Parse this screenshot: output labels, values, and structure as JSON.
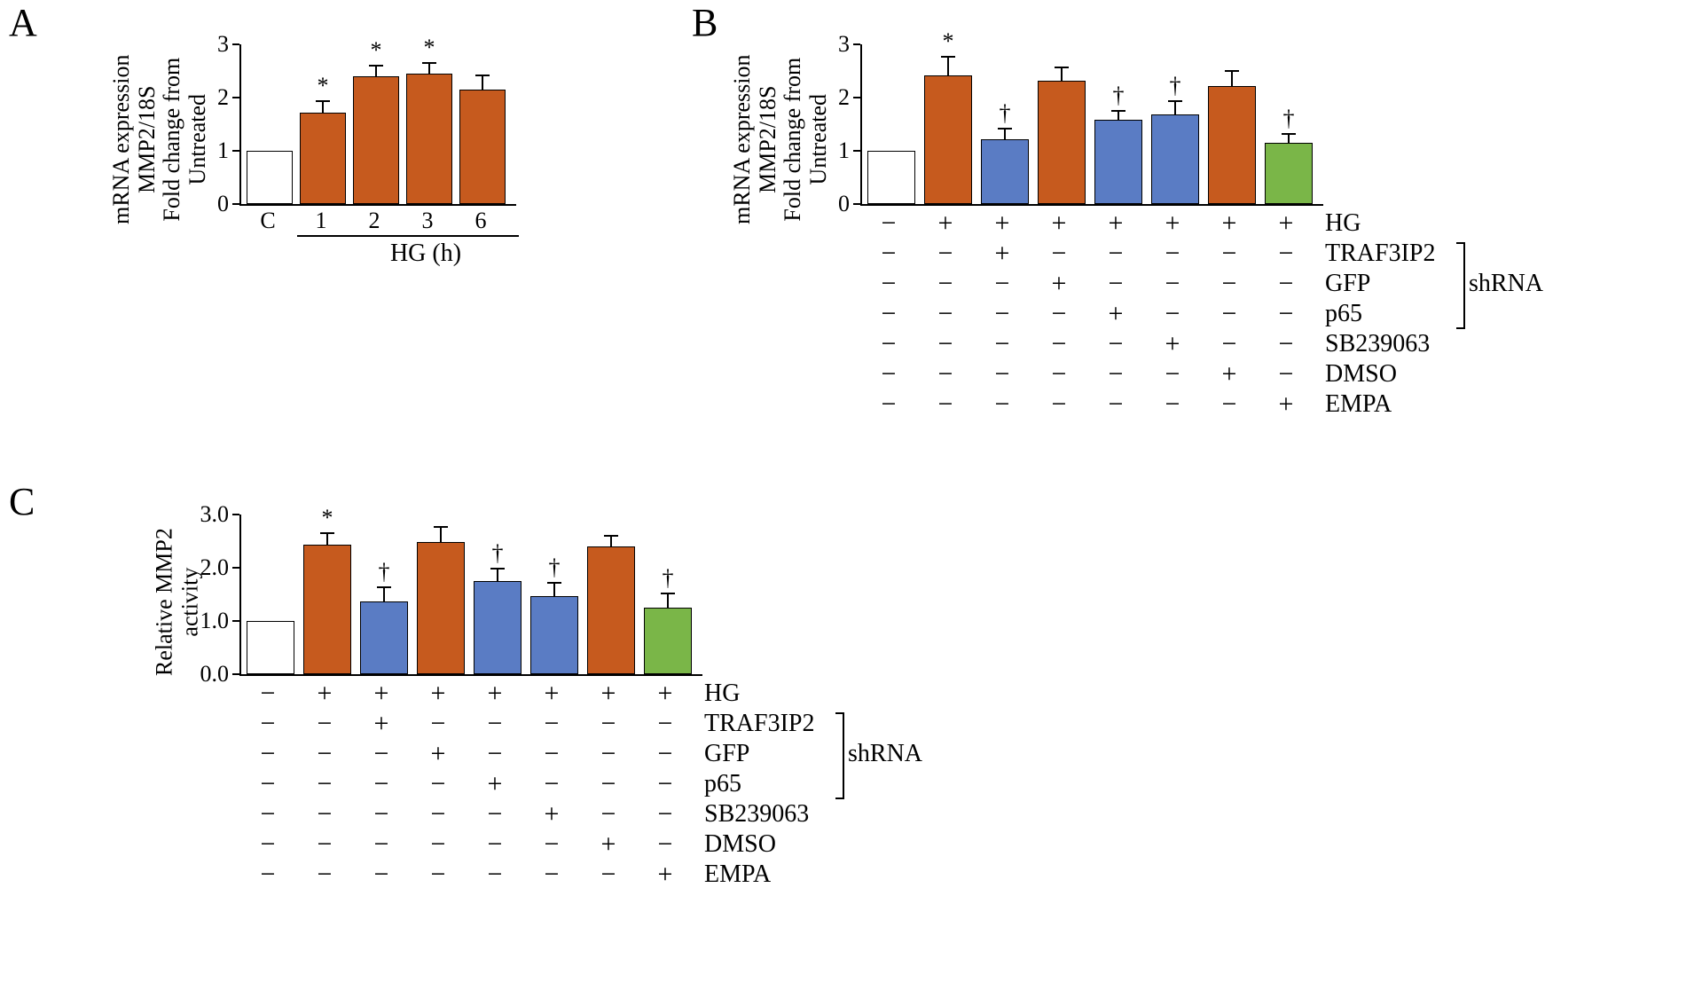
{
  "colors": {
    "white": "#ffffff",
    "orange": "#c65a1e",
    "blue": "#5a7cc4",
    "green": "#7ab648",
    "black": "#000000"
  },
  "panelA": {
    "label": "A",
    "ylabel": "mRNA expression\nMMP2/18S\nFold change from\nUntreated",
    "ylim": [
      0,
      3
    ],
    "yticks": [
      0,
      1,
      2,
      3
    ],
    "xlabels": [
      "C",
      "1",
      "2",
      "3",
      "6"
    ],
    "xaxis_label": "HG (h)",
    "bars": [
      {
        "value": 1.0,
        "error": 0,
        "color": "#ffffff",
        "sig": ""
      },
      {
        "value": 1.72,
        "error": 0.22,
        "color": "#c65a1e",
        "sig": "*"
      },
      {
        "value": 2.4,
        "error": 0.2,
        "color": "#c65a1e",
        "sig": "*"
      },
      {
        "value": 2.45,
        "error": 0.2,
        "color": "#c65a1e",
        "sig": "*"
      },
      {
        "value": 2.15,
        "error": 0.27,
        "color": "#c65a1e",
        "sig": ""
      }
    ]
  },
  "panelB": {
    "label": "B",
    "ylabel": "mRNA expression\nMMP2/18S\nFold change from\nUntreated",
    "ylim": [
      0,
      3
    ],
    "yticks": [
      0,
      1,
      2,
      3
    ],
    "bars": [
      {
        "value": 1.0,
        "error": 0,
        "color": "#ffffff",
        "sig": ""
      },
      {
        "value": 2.42,
        "error": 0.35,
        "color": "#c65a1e",
        "sig": "*"
      },
      {
        "value": 1.22,
        "error": 0.2,
        "color": "#5a7cc4",
        "sig": "†"
      },
      {
        "value": 2.32,
        "error": 0.25,
        "color": "#c65a1e",
        "sig": ""
      },
      {
        "value": 1.58,
        "error": 0.17,
        "color": "#5a7cc4",
        "sig": "†"
      },
      {
        "value": 1.68,
        "error": 0.25,
        "color": "#5a7cc4",
        "sig": "†"
      },
      {
        "value": 2.22,
        "error": 0.28,
        "color": "#c65a1e",
        "sig": ""
      },
      {
        "value": 1.15,
        "error": 0.17,
        "color": "#7ab648",
        "sig": "†"
      }
    ],
    "treatments": {
      "rows": [
        {
          "name": "HG",
          "cells": [
            "−",
            "+",
            "+",
            "+",
            "+",
            "+",
            "+",
            "+"
          ]
        },
        {
          "name": "TRAF3IP2",
          "cells": [
            "−",
            "−",
            "+",
            "−",
            "−",
            "−",
            "−",
            "−"
          ]
        },
        {
          "name": "GFP",
          "cells": [
            "−",
            "−",
            "−",
            "+",
            "−",
            "−",
            "−",
            "−"
          ]
        },
        {
          "name": "p65",
          "cells": [
            "−",
            "−",
            "−",
            "−",
            "+",
            "−",
            "−",
            "−"
          ]
        },
        {
          "name": "SB239063",
          "cells": [
            "−",
            "−",
            "−",
            "−",
            "−",
            "+",
            "−",
            "−"
          ]
        },
        {
          "name": "DMSO",
          "cells": [
            "−",
            "−",
            "−",
            "−",
            "−",
            "−",
            "+",
            "−"
          ]
        },
        {
          "name": "EMPA",
          "cells": [
            "−",
            "−",
            "−",
            "−",
            "−",
            "−",
            "−",
            "+"
          ]
        }
      ],
      "bracket_label": "shRNA",
      "bracket_rows": [
        1,
        2,
        3
      ]
    }
  },
  "panelC": {
    "label": "C",
    "ylabel": "Relative MMP2\nactivity",
    "ylim": [
      0,
      3
    ],
    "yticks": [
      0.0,
      1.0,
      2.0,
      3.0
    ],
    "bars": [
      {
        "value": 1.0,
        "error": 0,
        "color": "#ffffff",
        "sig": ""
      },
      {
        "value": 2.43,
        "error": 0.22,
        "color": "#c65a1e",
        "sig": "*"
      },
      {
        "value": 1.37,
        "error": 0.27,
        "color": "#5a7cc4",
        "sig": "†"
      },
      {
        "value": 2.48,
        "error": 0.28,
        "color": "#c65a1e",
        "sig": ""
      },
      {
        "value": 1.75,
        "error": 0.24,
        "color": "#5a7cc4",
        "sig": "†"
      },
      {
        "value": 1.47,
        "error": 0.25,
        "color": "#5a7cc4",
        "sig": "†"
      },
      {
        "value": 2.4,
        "error": 0.2,
        "color": "#c65a1e",
        "sig": ""
      },
      {
        "value": 1.25,
        "error": 0.27,
        "color": "#7ab648",
        "sig": "†"
      }
    ],
    "treatments": {
      "rows": [
        {
          "name": "HG",
          "cells": [
            "−",
            "+",
            "+",
            "+",
            "+",
            "+",
            "+",
            "+"
          ]
        },
        {
          "name": "TRAF3IP2",
          "cells": [
            "−",
            "−",
            "+",
            "−",
            "−",
            "−",
            "−",
            "−"
          ]
        },
        {
          "name": "GFP",
          "cells": [
            "−",
            "−",
            "−",
            "+",
            "−",
            "−",
            "−",
            "−"
          ]
        },
        {
          "name": "p65",
          "cells": [
            "−",
            "−",
            "−",
            "−",
            "+",
            "−",
            "−",
            "−"
          ]
        },
        {
          "name": "SB239063",
          "cells": [
            "−",
            "−",
            "−",
            "−",
            "−",
            "+",
            "−",
            "−"
          ]
        },
        {
          "name": "DMSO",
          "cells": [
            "−",
            "−",
            "−",
            "−",
            "−",
            "−",
            "+",
            "−"
          ]
        },
        {
          "name": "EMPA",
          "cells": [
            "−",
            "−",
            "−",
            "−",
            "−",
            "−",
            "−",
            "+"
          ]
        }
      ],
      "bracket_label": "shRNA",
      "bracket_rows": [
        1,
        2,
        3
      ]
    }
  }
}
